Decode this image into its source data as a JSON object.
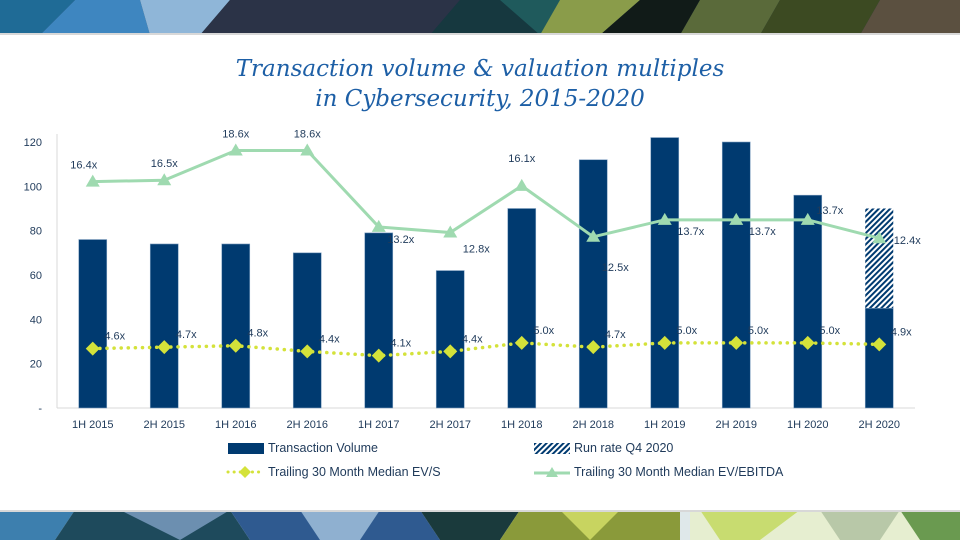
{
  "title_line1": "Transaction volume & valuation multiples",
  "title_line2": "in Cybersecurity, 2015-2020",
  "colors": {
    "bar": "#003a70",
    "ev_s": "#d4e23a",
    "ev_ebitda": "#9fdab0",
    "title": "#1d5fa6",
    "text": "#1f3a5a"
  },
  "chart_data": {
    "type": "bar",
    "title": "Transaction volume & valuation multiples in Cybersecurity, 2015-2020",
    "categories": [
      "1H 2015",
      "2H 2015",
      "1H 2016",
      "2H 2016",
      "1H 2017",
      "2H 2017",
      "1H 2018",
      "2H 2018",
      "1H 2019",
      "2H 2019",
      "1H 2020",
      "2H 2020"
    ],
    "ylim": [
      0,
      120
    ],
    "yticks": [
      "-",
      "20",
      "40",
      "60",
      "80",
      "100",
      "120"
    ],
    "ytick_values": [
      0,
      20,
      40,
      60,
      80,
      100,
      120
    ],
    "series": [
      {
        "name": "Transaction Volume",
        "type": "bar",
        "values": [
          76,
          74,
          74,
          70,
          79,
          62,
          90,
          112,
          122,
          120,
          96,
          45
        ]
      },
      {
        "name": "Run rate Q4 2020",
        "type": "bar-hatched",
        "values": [
          null,
          null,
          null,
          null,
          null,
          null,
          null,
          null,
          null,
          null,
          null,
          90
        ]
      },
      {
        "name": "Trailing 30 Month Median EV/S",
        "type": "line-dotted",
        "axis": "secondary",
        "values": [
          4.6,
          4.7,
          4.8,
          4.4,
          4.1,
          4.4,
          5.0,
          4.7,
          5.0,
          5.0,
          5.0,
          4.9
        ],
        "labels": [
          "4.6x",
          "4.7x",
          "4.8x",
          "4.4x",
          "4.1x",
          "4.4x",
          "5.0x",
          "4.7x",
          "5.0x",
          "5.0x",
          "5.0x",
          "4.9x"
        ]
      },
      {
        "name": "Trailing 30 Month Median EV/EBITDA",
        "type": "line",
        "axis": "secondary",
        "values": [
          16.4,
          16.5,
          18.6,
          18.6,
          13.2,
          12.8,
          16.1,
          12.5,
          13.7,
          13.7,
          13.7,
          12.4
        ],
        "labels": [
          "16.4x",
          "16.5x",
          "18.6x",
          "18.6x",
          "13.2x",
          "12.8x",
          "16.1x",
          "12.5x",
          "13.7x",
          "13.7x",
          "13.7x",
          "12.4x"
        ]
      }
    ],
    "secondary_ylim": [
      0.4,
      19.2
    ],
    "grid": false,
    "legend_position": "bottom"
  },
  "legend": {
    "transaction_volume": "Transaction Volume",
    "run_rate": "Run rate Q4 2020",
    "ev_s": "Trailing 30 Month Median EV/S",
    "ev_ebitda": "Trailing 30 Month Median EV/EBITDA"
  }
}
